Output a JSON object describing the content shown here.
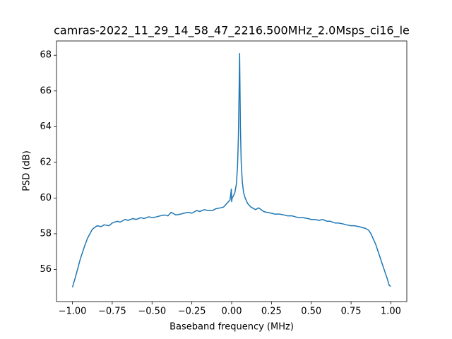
{
  "chart_data": {
    "type": "line",
    "title": "camras-2022_11_29_14_58_47_2216.500MHz_2.0Msps_ci16_le",
    "x_label": "Baseband frequency (MHz)",
    "y_label": "PSD (dB)",
    "series": [
      {
        "color": "#1f77b4",
        "x": [
          -1.0,
          -0.99,
          -0.98,
          -0.965,
          -0.95,
          -0.935,
          -0.92,
          -0.905,
          -0.89,
          -0.875,
          -0.86,
          -0.845,
          -0.82,
          -0.8,
          -0.77,
          -0.75,
          -0.72,
          -0.7,
          -0.67,
          -0.65,
          -0.62,
          -0.6,
          -0.57,
          -0.55,
          -0.52,
          -0.5,
          -0.47,
          -0.45,
          -0.42,
          -0.4,
          -0.38,
          -0.35,
          -0.32,
          -0.3,
          -0.27,
          -0.25,
          -0.22,
          -0.2,
          -0.17,
          -0.15,
          -0.12,
          -0.1,
          -0.07,
          -0.05,
          -0.03,
          -0.01,
          -0.002,
          0.0,
          0.003,
          0.01,
          0.02,
          0.03,
          0.037,
          0.042,
          0.046,
          0.049,
          0.05,
          0.052,
          0.055,
          0.06,
          0.067,
          0.075,
          0.085,
          0.1,
          0.12,
          0.15,
          0.17,
          0.2,
          0.22,
          0.25,
          0.27,
          0.3,
          0.33,
          0.35,
          0.38,
          0.4,
          0.42,
          0.45,
          0.48,
          0.5,
          0.52,
          0.55,
          0.57,
          0.6,
          0.62,
          0.65,
          0.67,
          0.7,
          0.72,
          0.75,
          0.77,
          0.8,
          0.82,
          0.84,
          0.86,
          0.875,
          0.89,
          0.905,
          0.92,
          0.935,
          0.95,
          0.965,
          0.98,
          0.99,
          1.0
        ],
        "values": [
          55.0,
          55.3,
          55.6,
          56.1,
          56.6,
          57.0,
          57.4,
          57.75,
          58.0,
          58.25,
          58.35,
          58.45,
          58.4,
          58.5,
          58.45,
          58.6,
          58.7,
          58.65,
          58.8,
          58.75,
          58.85,
          58.8,
          58.9,
          58.85,
          58.95,
          58.9,
          58.95,
          59.0,
          59.05,
          59.0,
          59.2,
          59.05,
          59.1,
          59.15,
          59.2,
          59.15,
          59.3,
          59.25,
          59.35,
          59.3,
          59.3,
          59.4,
          59.45,
          59.5,
          59.7,
          59.9,
          60.5,
          59.8,
          60.0,
          60.1,
          60.3,
          60.8,
          61.8,
          63.3,
          65.5,
          67.5,
          68.1,
          66.5,
          64.0,
          62.0,
          60.9,
          60.3,
          60.0,
          59.7,
          59.5,
          59.35,
          59.45,
          59.25,
          59.2,
          59.15,
          59.1,
          59.1,
          59.05,
          59.0,
          59.0,
          58.95,
          58.9,
          58.9,
          58.85,
          58.8,
          58.8,
          58.75,
          58.8,
          58.7,
          58.7,
          58.6,
          58.6,
          58.55,
          58.5,
          58.45,
          58.45,
          58.4,
          58.35,
          58.3,
          58.2,
          58.0,
          57.7,
          57.4,
          57.0,
          56.6,
          56.2,
          55.8,
          55.4,
          55.1,
          55.05
        ]
      }
    ],
    "xlim": [
      -1.1,
      1.1
    ],
    "ylim": [
      54.2,
      68.8
    ],
    "xticks": [
      {
        "value": -1.0,
        "label": "−1.00"
      },
      {
        "value": -0.75,
        "label": "−0.75"
      },
      {
        "value": -0.5,
        "label": "−0.50"
      },
      {
        "value": -0.25,
        "label": "−0.25"
      },
      {
        "value": 0.0,
        "label": "0.00"
      },
      {
        "value": 0.25,
        "label": "0.25"
      },
      {
        "value": 0.5,
        "label": "0.50"
      },
      {
        "value": 0.75,
        "label": "0.75"
      },
      {
        "value": 1.0,
        "label": "1.00"
      }
    ],
    "yticks": [
      56,
      58,
      60,
      62,
      64,
      66,
      68
    ],
    "grid": false
  }
}
